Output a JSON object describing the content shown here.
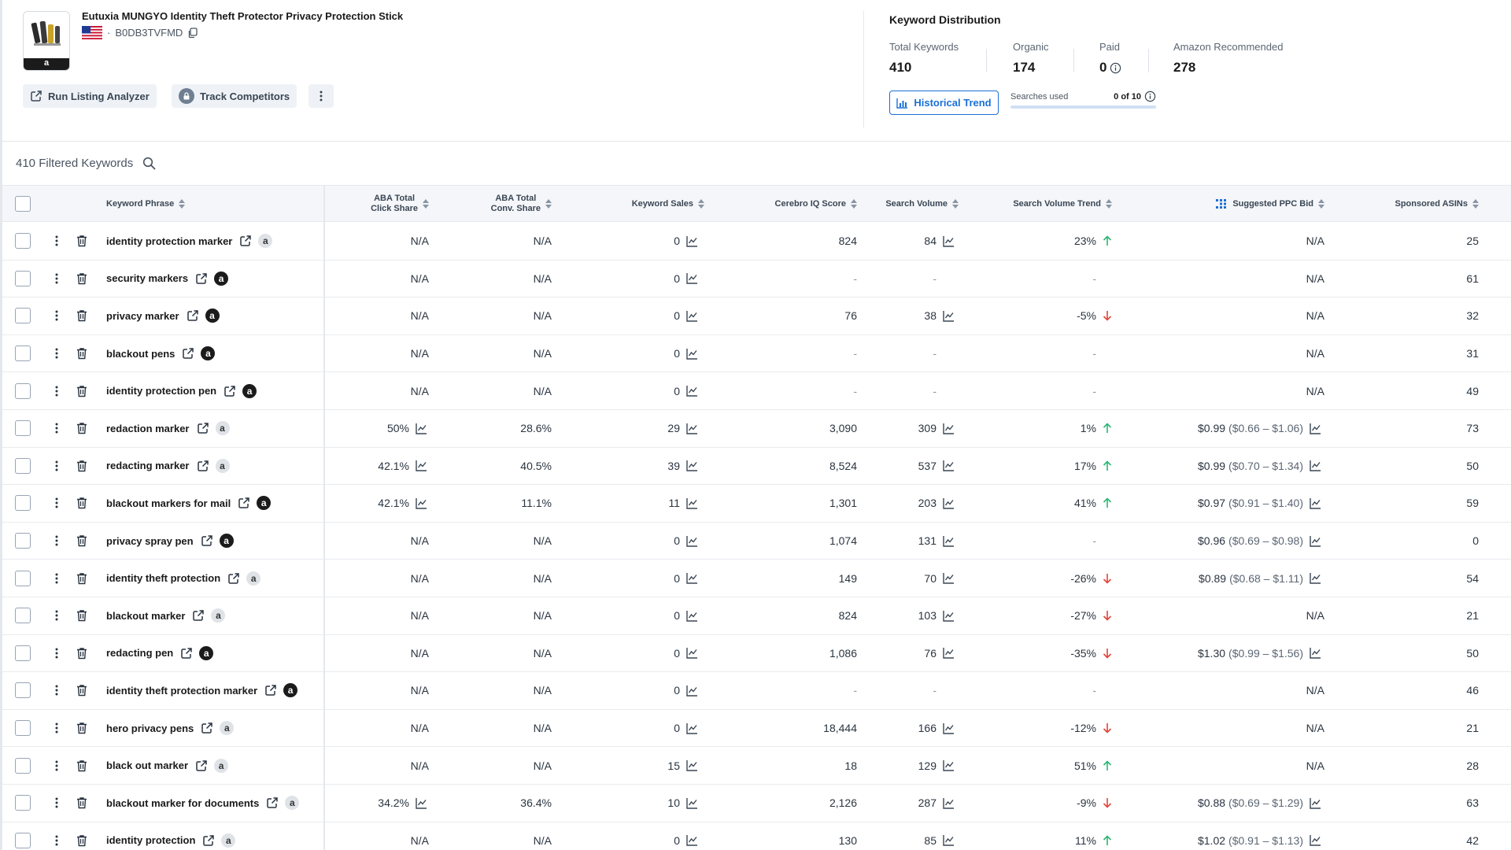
{
  "product": {
    "title": "Eutuxia MUNGYO Identity Theft Protector Privacy Protection Stick",
    "asin": "B0DB3TVFMD",
    "separator": "·",
    "thumb_badge": "a"
  },
  "actions": {
    "listing_analyzer": "Run Listing Analyzer",
    "track_competitors": "Track Competitors"
  },
  "keyword_distribution": {
    "title": "Keyword Distribution",
    "total_label": "Total Keywords",
    "total_value": "410",
    "organic_label": "Organic",
    "organic_value": "174",
    "paid_label": "Paid",
    "paid_value": "0",
    "amazon_label": "Amazon Recommended",
    "amazon_value": "278",
    "historical_trend": "Historical Trend",
    "searches_used_label": "Searches used",
    "searches_used_value": "0 of 10"
  },
  "filter": {
    "label": "410 Filtered Keywords"
  },
  "columns": {
    "keyword_phrase": "Keyword Phrase",
    "aba_click_1": "ABA Total",
    "aba_click_2": "Click Share",
    "aba_conv_1": "ABA Total",
    "aba_conv_2": "Conv. Share",
    "keyword_sales": "Keyword Sales",
    "cerebro_iq": "Cerebro IQ Score",
    "search_volume": "Search Volume",
    "sv_trend": "Search Volume Trend",
    "ppc_bid": "Suggested PPC Bid",
    "sponsored_asins": "Sponsored ASINs"
  },
  "rows": [
    {
      "kw": "identity protection marker",
      "amz": "light",
      "click": "N/A",
      "click_chart": false,
      "conv": "N/A",
      "sales": "0",
      "iq": "824",
      "sv": "84",
      "sv_chart": true,
      "trend": "23%",
      "dir": "up",
      "ppc": "N/A",
      "ppc_range": "",
      "asins": "25"
    },
    {
      "kw": "security markers",
      "amz": "dark",
      "click": "N/A",
      "click_chart": false,
      "conv": "N/A",
      "sales": "0",
      "iq": "-",
      "sv": "-",
      "sv_chart": false,
      "trend": "-",
      "dir": "",
      "ppc": "N/A",
      "ppc_range": "",
      "asins": "61"
    },
    {
      "kw": "privacy marker",
      "amz": "dark",
      "click": "N/A",
      "click_chart": false,
      "conv": "N/A",
      "sales": "0",
      "iq": "76",
      "sv": "38",
      "sv_chart": true,
      "trend": "-5%",
      "dir": "down",
      "ppc": "N/A",
      "ppc_range": "",
      "asins": "32"
    },
    {
      "kw": "blackout pens",
      "amz": "dark",
      "click": "N/A",
      "click_chart": false,
      "conv": "N/A",
      "sales": "0",
      "iq": "-",
      "sv": "-",
      "sv_chart": false,
      "trend": "-",
      "dir": "",
      "ppc": "N/A",
      "ppc_range": "",
      "asins": "31"
    },
    {
      "kw": "identity protection pen",
      "amz": "dark",
      "click": "N/A",
      "click_chart": false,
      "conv": "N/A",
      "sales": "0",
      "iq": "-",
      "sv": "-",
      "sv_chart": false,
      "trend": "-",
      "dir": "",
      "ppc": "N/A",
      "ppc_range": "",
      "asins": "49"
    },
    {
      "kw": "redaction marker",
      "amz": "light",
      "click": "50%",
      "click_chart": true,
      "conv": "28.6%",
      "sales": "29",
      "iq": "3,090",
      "sv": "309",
      "sv_chart": true,
      "trend": "1%",
      "dir": "up",
      "ppc": "$0.99",
      "ppc_range": "($0.66 – $1.06)",
      "asins": "73"
    },
    {
      "kw": "redacting marker",
      "amz": "light",
      "click": "42.1%",
      "click_chart": true,
      "conv": "40.5%",
      "sales": "39",
      "iq": "8,524",
      "sv": "537",
      "sv_chart": true,
      "trend": "17%",
      "dir": "up",
      "ppc": "$0.99",
      "ppc_range": "($0.70 – $1.34)",
      "asins": "50"
    },
    {
      "kw": "blackout markers for mail",
      "amz": "dark",
      "click": "42.1%",
      "click_chart": true,
      "conv": "11.1%",
      "sales": "11",
      "iq": "1,301",
      "sv": "203",
      "sv_chart": true,
      "trend": "41%",
      "dir": "up",
      "ppc": "$0.97",
      "ppc_range": "($0.91 – $1.40)",
      "asins": "59"
    },
    {
      "kw": "privacy spray pen",
      "amz": "dark",
      "click": "N/A",
      "click_chart": false,
      "conv": "N/A",
      "sales": "0",
      "iq": "1,074",
      "sv": "131",
      "sv_chart": true,
      "trend": "-",
      "dir": "",
      "ppc": "$0.96",
      "ppc_range": "($0.69 – $0.98)",
      "asins": "0"
    },
    {
      "kw": "identity theft protection",
      "amz": "light",
      "click": "N/A",
      "click_chart": false,
      "conv": "N/A",
      "sales": "0",
      "iq": "149",
      "sv": "70",
      "sv_chart": true,
      "trend": "-26%",
      "dir": "down",
      "ppc": "$0.89",
      "ppc_range": "($0.68 – $1.11)",
      "asins": "54"
    },
    {
      "kw": "blackout marker",
      "amz": "light",
      "click": "N/A",
      "click_chart": false,
      "conv": "N/A",
      "sales": "0",
      "iq": "824",
      "sv": "103",
      "sv_chart": true,
      "trend": "-27%",
      "dir": "down",
      "ppc": "N/A",
      "ppc_range": "",
      "asins": "21"
    },
    {
      "kw": "redacting pen",
      "amz": "dark",
      "click": "N/A",
      "click_chart": false,
      "conv": "N/A",
      "sales": "0",
      "iq": "1,086",
      "sv": "76",
      "sv_chart": true,
      "trend": "-35%",
      "dir": "down",
      "ppc": "$1.30",
      "ppc_range": "($0.99 – $1.56)",
      "asins": "50"
    },
    {
      "kw": "identity theft protection marker",
      "amz": "dark",
      "click": "N/A",
      "click_chart": false,
      "conv": "N/A",
      "sales": "0",
      "iq": "-",
      "sv": "-",
      "sv_chart": false,
      "trend": "-",
      "dir": "",
      "ppc": "N/A",
      "ppc_range": "",
      "asins": "46"
    },
    {
      "kw": "hero privacy pens",
      "amz": "light",
      "click": "N/A",
      "click_chart": false,
      "conv": "N/A",
      "sales": "0",
      "iq": "18,444",
      "sv": "166",
      "sv_chart": true,
      "trend": "-12%",
      "dir": "down",
      "ppc": "N/A",
      "ppc_range": "",
      "asins": "21"
    },
    {
      "kw": "black out marker",
      "amz": "light",
      "click": "N/A",
      "click_chart": false,
      "conv": "N/A",
      "sales": "15",
      "iq": "18",
      "sv": "129",
      "sv_chart": true,
      "trend": "51%",
      "dir": "up",
      "ppc": "N/A",
      "ppc_range": "",
      "asins": "28"
    },
    {
      "kw": "blackout marker for documents",
      "amz": "light",
      "click": "34.2%",
      "click_chart": true,
      "conv": "36.4%",
      "sales": "10",
      "iq": "2,126",
      "sv": "287",
      "sv_chart": true,
      "trend": "-9%",
      "dir": "down",
      "ppc": "$0.88",
      "ppc_range": "($0.69 – $1.29)",
      "asins": "63"
    },
    {
      "kw": "identity protection",
      "amz": "light",
      "click": "N/A",
      "click_chart": false,
      "conv": "N/A",
      "sales": "0",
      "iq": "130",
      "sv": "85",
      "sv_chart": true,
      "trend": "11%",
      "dir": "up",
      "ppc": "$1.02",
      "ppc_range": "($0.91 – $1.13)",
      "asins": "42"
    }
  ],
  "icons": {
    "external_link": "external-link-icon",
    "trend_chart": "line-chart-icon",
    "delete": "trash-icon",
    "row_menu": "kebab-menu-icon",
    "amazon_badge": "amazon-badge-icon",
    "up_arrow": "trend-up-arrow-icon",
    "down_arrow": "trend-down-arrow-icon"
  },
  "colors": {
    "accent": "#1b6fd6",
    "up": "#2bb673",
    "down": "#e0453a"
  }
}
